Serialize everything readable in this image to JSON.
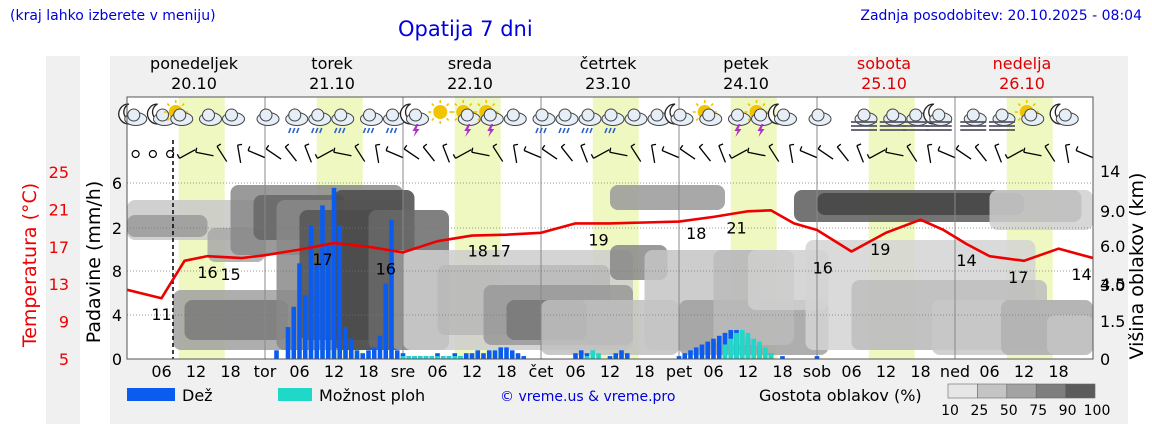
{
  "header": {
    "hint": "(kraj lahko izberete v meniju)",
    "title": "Opatija 7 dni",
    "updated": "Zadnja posodobitev: 20.10.2025 - 08:04"
  },
  "colors": {
    "temperature": "#ee0000",
    "rain": "#0a5cf0",
    "showers": "#20d8c8",
    "weekend": "#dd0000",
    "day_band": "#eef8c0",
    "link": "#0000dd"
  },
  "legend": {
    "rain": "Dež",
    "showers": "Možnost ploh",
    "credit": "© vreme.us & vreme.pro",
    "cloud_density": "Gostota oblakov (%)",
    "cloud_steps": [
      "10",
      "25",
      "50",
      "75",
      "90",
      "100"
    ]
  },
  "chart_data": {
    "type": "line",
    "location": "Opatija",
    "days": [
      {
        "name": "ponedeljek",
        "date": "20.10",
        "weekend": false
      },
      {
        "name": "torek",
        "date": "21.10",
        "weekend": false
      },
      {
        "name": "sreda",
        "date": "22.10",
        "weekend": false
      },
      {
        "name": "četrtek",
        "date": "23.10",
        "weekend": false
      },
      {
        "name": "petek",
        "date": "24.10",
        "weekend": false
      },
      {
        "name": "sobota",
        "date": "25.10",
        "weekend": true
      },
      {
        "name": "nedelja",
        "date": "26.10",
        "weekend": true
      }
    ],
    "x_ticks": [
      "06",
      "12",
      "18",
      "tor",
      "06",
      "12",
      "18",
      "sre",
      "06",
      "12",
      "18",
      "čet",
      "06",
      "12",
      "18",
      "pet",
      "06",
      "12",
      "18",
      "sob",
      "06",
      "12",
      "18",
      "ned",
      "06",
      "12",
      "18"
    ],
    "now_hours": 8,
    "y_left_temperature": {
      "label": "Temperatura (°C)",
      "ticks": [
        "5",
        "9",
        "13",
        "17",
        "21",
        "25"
      ],
      "range": [
        5,
        25
      ]
    },
    "y_left_precip": {
      "label": "Padavine (mm/h)",
      "ticks": [
        "0",
        "4",
        "8",
        "2",
        "6"
      ]
    },
    "y_right_cloud": {
      "label": "Višina oblakov (km)",
      "ticks": [
        "0",
        "1.5",
        "3.0",
        "4.5",
        "6.0",
        "9.0",
        "14"
      ]
    },
    "temperature": {
      "name": "Temperatura",
      "hours": [
        0,
        6,
        10,
        14,
        20,
        24,
        30,
        36,
        42,
        48,
        54,
        60,
        66,
        72,
        78,
        84,
        90,
        96,
        102,
        108,
        112,
        116,
        120,
        126,
        132,
        138,
        142,
        146,
        150,
        156,
        162,
        168
      ],
      "values": [
        12.4,
        11.5,
        15.5,
        16,
        15.8,
        16.1,
        16.7,
        17.4,
        17,
        16.4,
        17.6,
        18.2,
        18.3,
        18.5,
        19.5,
        19.5,
        19.6,
        19.7,
        20.2,
        20.8,
        20.9,
        19.5,
        18.8,
        16.5,
        18.5,
        19.9,
        18.8,
        17.3,
        16.0,
        15.5,
        16.8,
        15.8
      ]
    },
    "temp_labels": [
      {
        "h": 6,
        "v": "11"
      },
      {
        "h": 14,
        "v": "16"
      },
      {
        "h": 18,
        "v": "15"
      },
      {
        "h": 34,
        "v": "17"
      },
      {
        "h": 45,
        "v": "16"
      },
      {
        "h": 61,
        "v": "18"
      },
      {
        "h": 65,
        "v": "17"
      },
      {
        "h": 82,
        "v": "19"
      },
      {
        "h": 99,
        "v": "18"
      },
      {
        "h": 106,
        "v": "21"
      },
      {
        "h": 121,
        "v": "16"
      },
      {
        "h": 131,
        "v": "19"
      },
      {
        "h": 146,
        "v": "14"
      },
      {
        "h": 155,
        "v": "17"
      },
      {
        "h": 166,
        "v": "14"
      }
    ],
    "rain": {
      "name": "Dež",
      "bars": [
        {
          "h": 26,
          "v": 0.3
        },
        {
          "h": 28,
          "v": 1.1
        },
        {
          "h": 29,
          "v": 1.8
        },
        {
          "h": 30,
          "v": 3.3
        },
        {
          "h": 31,
          "v": 2.2
        },
        {
          "h": 32,
          "v": 4.6
        },
        {
          "h": 33,
          "v": 3.3
        },
        {
          "h": 34,
          "v": 5.3
        },
        {
          "h": 35,
          "v": 4.0
        },
        {
          "h": 36,
          "v": 5.9
        },
        {
          "h": 37,
          "v": 4.6
        },
        {
          "h": 38,
          "v": 1.1
        },
        {
          "h": 39,
          "v": 0.7
        },
        {
          "h": 40,
          "v": 0.3
        },
        {
          "h": 41,
          "v": 0.2
        },
        {
          "h": 42,
          "v": 0.3
        },
        {
          "h": 43,
          "v": 0.4
        },
        {
          "h": 44,
          "v": 0.8
        },
        {
          "h": 45,
          "v": 2.6
        },
        {
          "h": 46,
          "v": 4.8
        },
        {
          "h": 47,
          "v": 0.3
        },
        {
          "h": 48,
          "v": 0.2
        },
        {
          "h": 49,
          "v": 0.1
        },
        {
          "h": 50,
          "v": 0.1
        },
        {
          "h": 51,
          "v": 0.1
        },
        {
          "h": 52,
          "v": 0.1
        },
        {
          "h": 53,
          "v": 0.1
        },
        {
          "h": 54,
          "v": 0.2
        },
        {
          "h": 55,
          "v": 0.1
        },
        {
          "h": 56,
          "v": 0.1
        },
        {
          "h": 57,
          "v": 0.2
        },
        {
          "h": 58,
          "v": 0.1
        },
        {
          "h": 59,
          "v": 0.2
        },
        {
          "h": 60,
          "v": 0.2
        },
        {
          "h": 61,
          "v": 0.3
        },
        {
          "h": 62,
          "v": 0.2
        },
        {
          "h": 63,
          "v": 0.3
        },
        {
          "h": 64,
          "v": 0.3
        },
        {
          "h": 65,
          "v": 0.4
        },
        {
          "h": 66,
          "v": 0.4
        },
        {
          "h": 67,
          "v": 0.3
        },
        {
          "h": 68,
          "v": 0.2
        },
        {
          "h": 69,
          "v": 0.1
        },
        {
          "h": 78,
          "v": 0.2
        },
        {
          "h": 79,
          "v": 0.3
        },
        {
          "h": 80,
          "v": 0.2
        },
        {
          "h": 84,
          "v": 0.1
        },
        {
          "h": 85,
          "v": 0.2
        },
        {
          "h": 86,
          "v": 0.3
        },
        {
          "h": 87,
          "v": 0.2
        },
        {
          "h": 96,
          "v": 0.1
        },
        {
          "h": 97,
          "v": 0.2
        },
        {
          "h": 98,
          "v": 0.3
        },
        {
          "h": 99,
          "v": 0.4
        },
        {
          "h": 100,
          "v": 0.5
        },
        {
          "h": 101,
          "v": 0.6
        },
        {
          "h": 102,
          "v": 0.7
        },
        {
          "h": 103,
          "v": 0.8
        },
        {
          "h": 104,
          "v": 0.9
        },
        {
          "h": 105,
          "v": 1.0
        },
        {
          "h": 106,
          "v": 1.0
        },
        {
          "h": 107,
          "v": 0.9
        },
        {
          "h": 108,
          "v": 0.7
        },
        {
          "h": 109,
          "v": 0.5
        },
        {
          "h": 110,
          "v": 0.4
        },
        {
          "h": 111,
          "v": 0.3
        },
        {
          "h": 112,
          "v": 0.2
        },
        {
          "h": 114,
          "v": 0.1
        },
        {
          "h": 120,
          "v": 0.1
        }
      ]
    },
    "showers": {
      "name": "Možnost ploh",
      "bars": [
        {
          "h": 48,
          "v": 0.1
        },
        {
          "h": 49,
          "v": 0.1
        },
        {
          "h": 50,
          "v": 0.1
        },
        {
          "h": 51,
          "v": 0.1
        },
        {
          "h": 52,
          "v": 0.1
        },
        {
          "h": 53,
          "v": 0.1
        },
        {
          "h": 54,
          "v": 0.1
        },
        {
          "h": 55,
          "v": 0.1
        },
        {
          "h": 56,
          "v": 0.1
        },
        {
          "h": 57,
          "v": 0.1
        },
        {
          "h": 58,
          "v": 0.1
        },
        {
          "h": 80,
          "v": 0.1
        },
        {
          "h": 81,
          "v": 0.3
        },
        {
          "h": 82,
          "v": 0.2
        },
        {
          "h": 104,
          "v": 0.5
        },
        {
          "h": 105,
          "v": 0.7
        },
        {
          "h": 106,
          "v": 0.9
        },
        {
          "h": 107,
          "v": 1.0
        },
        {
          "h": 108,
          "v": 0.9
        },
        {
          "h": 109,
          "v": 0.7
        },
        {
          "h": 110,
          "v": 0.6
        },
        {
          "h": 111,
          "v": 0.4
        },
        {
          "h": 112,
          "v": 0.2
        }
      ]
    }
  }
}
